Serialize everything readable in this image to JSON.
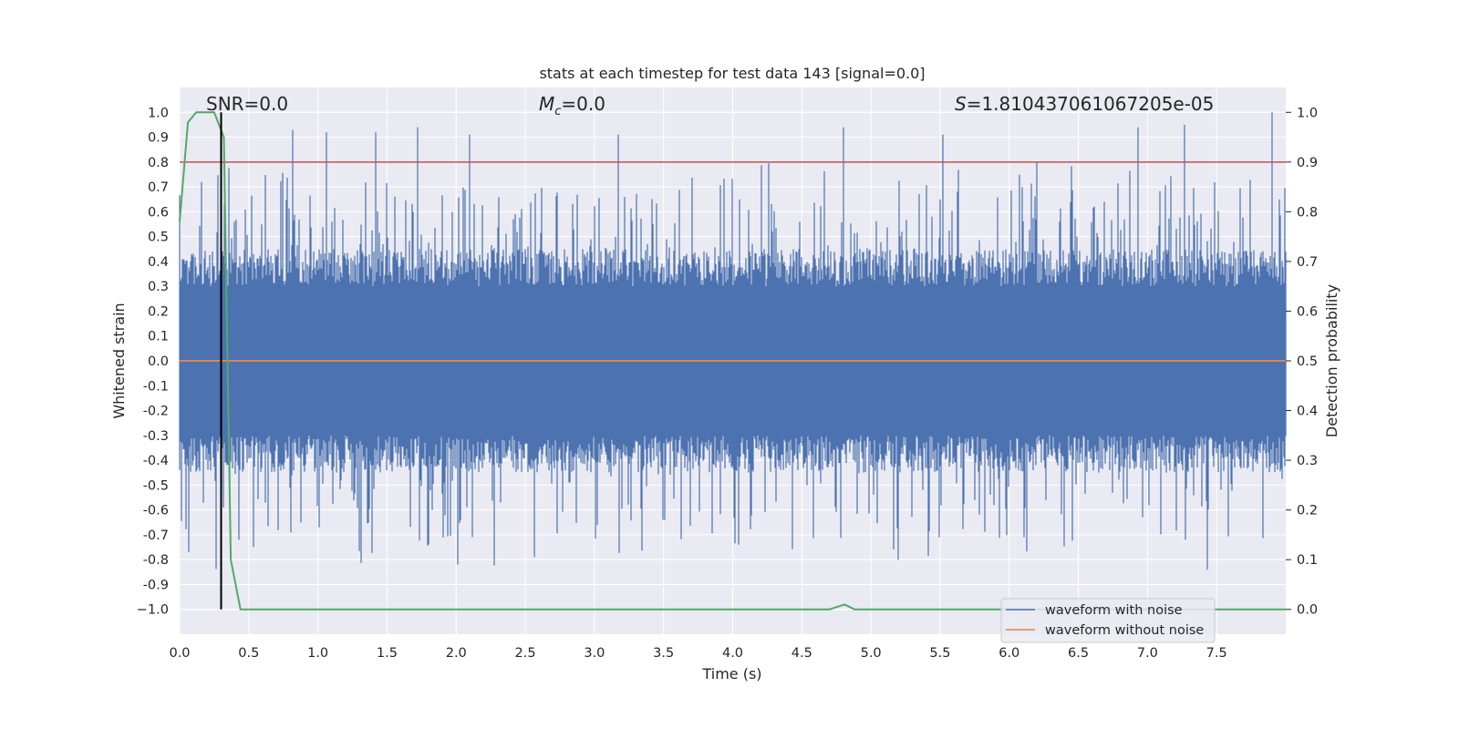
{
  "chart_data": {
    "type": "line",
    "title": "stats at each timestep for test data 143 [signal=0.0]",
    "xlabel": "Time (s)",
    "ylabel": "Whitened strain",
    "y2label": "Detection probability",
    "xlim": [
      0.0,
      8.0
    ],
    "ylim": [
      -1.1,
      1.1
    ],
    "y2lim": [
      -0.05,
      1.05
    ],
    "x_ticks": [
      0.0,
      0.5,
      1.0,
      1.5,
      2.0,
      2.5,
      3.0,
      3.5,
      4.0,
      4.5,
      5.0,
      5.5,
      6.0,
      6.5,
      7.0,
      7.5
    ],
    "x_tick_labels": [
      "0.0",
      "0.5",
      "1.0",
      "1.5",
      "2.0",
      "2.5",
      "3.0",
      "3.5",
      "4.0",
      "4.5",
      "5.0",
      "5.5",
      "6.0",
      "6.5",
      "7.0",
      "7.5"
    ],
    "y_ticks": [
      1.0,
      0.9,
      0.8,
      0.7,
      0.6,
      0.5,
      0.4,
      0.3,
      0.2,
      0.1,
      0.0,
      -0.1,
      -0.2,
      -0.3,
      -0.4,
      -0.5,
      -0.6,
      -0.7,
      -0.8,
      -0.9,
      -1.0
    ],
    "y_tick_labels": [
      "1.0",
      "0.9",
      "0.8",
      "0.7",
      "0.6",
      "0.5",
      "0.4",
      "0.3",
      "0.2",
      "0.1",
      "0.0",
      "-0.1",
      "-0.2",
      "-0.3",
      "-0.4",
      "-0.5",
      "-0.6",
      "-0.7",
      "-0.8",
      "-0.9",
      "−1.0"
    ],
    "y2_ticks": [
      1.0,
      0.9,
      0.8,
      0.7,
      0.6,
      0.5,
      0.4,
      0.3,
      0.2,
      0.1,
      0.0
    ],
    "y2_tick_labels": [
      "1.0",
      "0.9",
      "0.8",
      "0.7",
      "0.6",
      "0.5",
      "0.4",
      "0.3",
      "0.2",
      "0.1",
      "0.0"
    ],
    "annotations": {
      "snr": "SNR=0.0",
      "mc_symbol": "M",
      "mc_sub": "c",
      "mc_value": "=0.0",
      "s_symbol": "S",
      "s_value": "=1.810437061067205e-05"
    },
    "legend": {
      "position": "lower-right",
      "entries": [
        {
          "label": "waveform with noise",
          "color": "#4c72b0"
        },
        {
          "label": "waveform without noise",
          "color": "#dd8452"
        }
      ]
    },
    "series": [
      {
        "name": "waveform with noise",
        "axis": "left",
        "color": "#4c72b0",
        "note": "dense noise trace, amplitude mostly within about ±0.5 with spikes near ±1.0",
        "spike_times": [
          0.82,
          1.06,
          1.42,
          1.72,
          2.1,
          3.17,
          4.8,
          5.52,
          6.93,
          7.27,
          7.9
        ],
        "spike_values": [
          0.93,
          0.92,
          0.92,
          0.94,
          0.91,
          0.91,
          0.94,
          0.91,
          0.94,
          0.95,
          1.0
        ]
      },
      {
        "name": "waveform without noise",
        "axis": "left",
        "color": "#dd8452",
        "x": [
          0.0,
          8.0
        ],
        "y": [
          0.0,
          0.0
        ]
      },
      {
        "name": "detection probability",
        "axis": "right",
        "color": "#55a868",
        "x": [
          0.0,
          0.06,
          0.12,
          0.25,
          0.32,
          0.37,
          0.44,
          4.7,
          4.81,
          4.88,
          8.0
        ],
        "y": [
          0.78,
          0.98,
          1.0,
          1.0,
          0.95,
          0.1,
          0.0,
          0.0,
          0.01,
          0.0,
          0.0
        ]
      }
    ],
    "threshold_line": {
      "axis": "right",
      "value": 0.9,
      "color": "#c44e52"
    },
    "marker_line": {
      "x": 0.3,
      "color": "#000000"
    }
  }
}
